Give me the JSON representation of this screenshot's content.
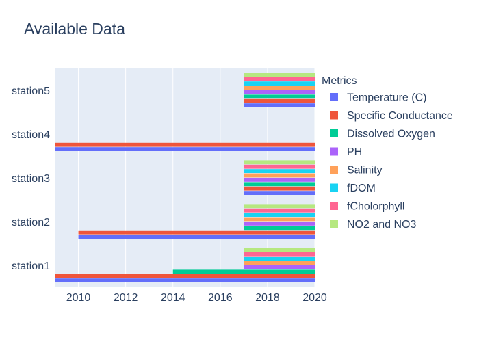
{
  "chart_data": {
    "type": "bar",
    "orientation": "horizontal",
    "title": "Available Data",
    "xlabel": "",
    "ylabel": "",
    "xlim": [
      2009,
      2020
    ],
    "x_ticks": [
      "2010",
      "2012",
      "2014",
      "2016",
      "2018",
      "2020"
    ],
    "categories": [
      "station1",
      "station2",
      "station3",
      "station4",
      "station5"
    ],
    "grid": true,
    "legend": {
      "title": "Metrics",
      "placement": "right"
    },
    "series": [
      {
        "name": "Temperature (C)",
        "color": "#636efa",
        "ranges": [
          [
            2009,
            2020
          ],
          [
            2010,
            2020
          ],
          [
            2017,
            2020
          ],
          [
            2009,
            2020
          ],
          [
            2017,
            2020
          ]
        ]
      },
      {
        "name": "Specific Conductance",
        "color": "#ef553b",
        "ranges": [
          [
            2009,
            2020
          ],
          [
            2010,
            2020
          ],
          [
            2017,
            2020
          ],
          [
            2009,
            2020
          ],
          [
            2017,
            2020
          ]
        ]
      },
      {
        "name": "Dissolved Oxygen",
        "color": "#00cc96",
        "ranges": [
          [
            2014,
            2020
          ],
          [
            2017,
            2020
          ],
          [
            2017,
            2020
          ],
          null,
          [
            2017,
            2020
          ]
        ]
      },
      {
        "name": "PH",
        "color": "#ab63fa",
        "ranges": [
          [
            2017,
            2020
          ],
          [
            2017,
            2020
          ],
          [
            2017,
            2020
          ],
          null,
          [
            2017,
            2020
          ]
        ]
      },
      {
        "name": "Salinity",
        "color": "#ffa15a",
        "ranges": [
          [
            2017,
            2020
          ],
          [
            2017,
            2020
          ],
          [
            2017,
            2020
          ],
          null,
          [
            2017,
            2020
          ]
        ]
      },
      {
        "name": "fDOM",
        "color": "#19d3f3",
        "ranges": [
          [
            2017,
            2020
          ],
          [
            2017,
            2020
          ],
          [
            2017,
            2020
          ],
          null,
          [
            2017,
            2020
          ]
        ]
      },
      {
        "name": "fCholorphyll",
        "color": "#ff6692",
        "ranges": [
          [
            2017,
            2020
          ],
          [
            2017,
            2020
          ],
          [
            2017,
            2020
          ],
          null,
          [
            2017,
            2020
          ]
        ]
      },
      {
        "name": "NO2 and NO3",
        "color": "#b6e880",
        "ranges": [
          [
            2017,
            2020
          ],
          [
            2017,
            2020
          ],
          [
            2017,
            2020
          ],
          null,
          [
            2017,
            2020
          ]
        ]
      }
    ]
  }
}
